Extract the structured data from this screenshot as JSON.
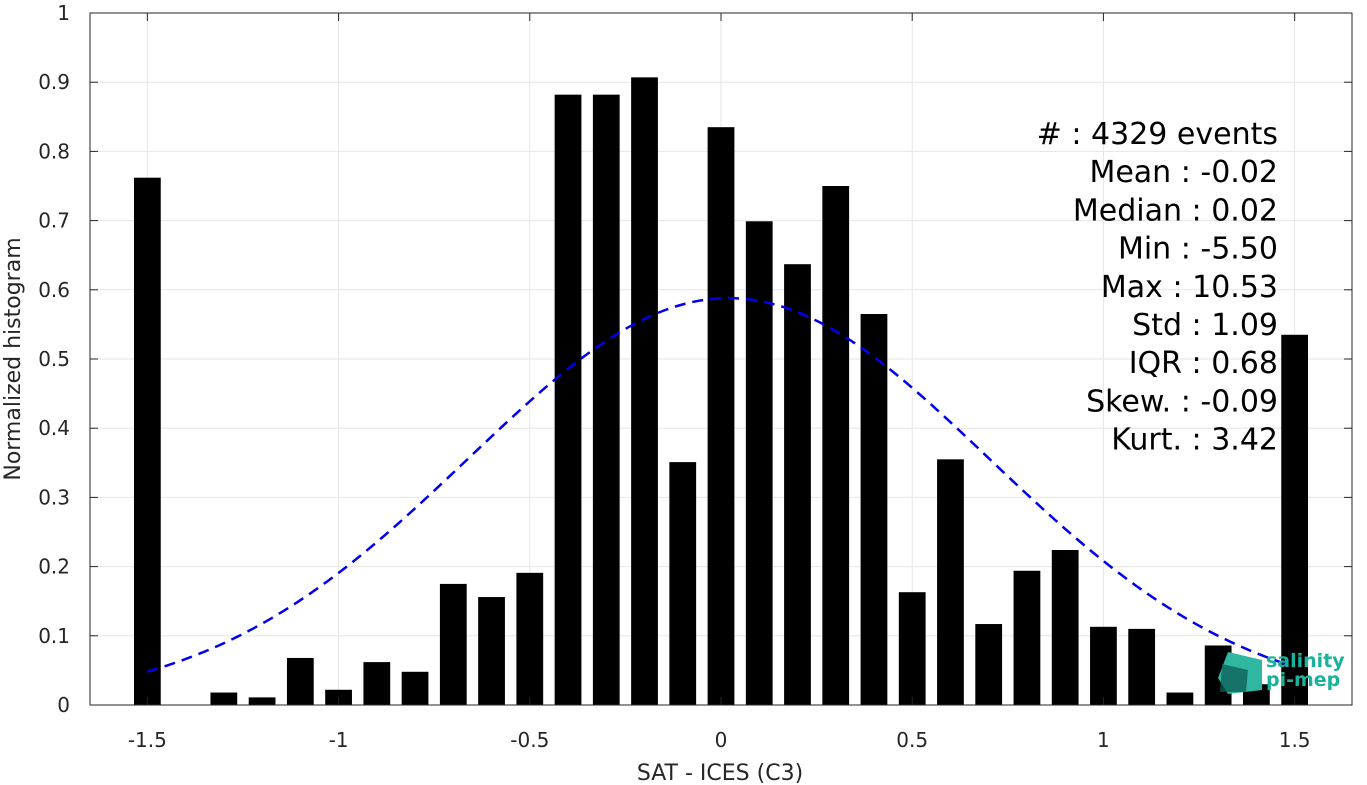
{
  "chart_data": {
    "type": "bar",
    "xlabel": "SAT - ICES (C3)",
    "ylabel": "Normalized histogram",
    "xlim": [
      -1.65,
      1.65
    ],
    "ylim": [
      0,
      1
    ],
    "grid": true,
    "x_ticks": [
      -1.5,
      -1,
      -0.5,
      0,
      0.5,
      1,
      1.5
    ],
    "x_tick_labels": [
      "-1.5",
      "-1",
      "-0.5",
      "0",
      "0.5",
      "1",
      "1.5"
    ],
    "y_ticks": [
      0,
      0.1,
      0.2,
      0.3,
      0.4,
      0.5,
      0.6,
      0.7,
      0.8,
      0.9,
      1
    ],
    "y_tick_labels": [
      "0",
      "0.1",
      "0.2",
      "0.3",
      "0.4",
      "0.5",
      "0.6",
      "0.7",
      "0.8",
      "0.9",
      "1"
    ],
    "bar_width": 0.07,
    "bar_color": "#000000",
    "x": [
      -1.5,
      -1.4,
      -1.3,
      -1.2,
      -1.1,
      -1.0,
      -0.9,
      -0.8,
      -0.7,
      -0.6,
      -0.5,
      -0.4,
      -0.3,
      -0.2,
      -0.1,
      0.0,
      0.1,
      0.2,
      0.3,
      0.4,
      0.5,
      0.6,
      0.7,
      0.8,
      0.9,
      1.0,
      1.1,
      1.2,
      1.3,
      1.4,
      1.5
    ],
    "values": [
      0.762,
      0.0,
      0.018,
      0.011,
      0.068,
      0.022,
      0.062,
      0.048,
      0.175,
      0.156,
      0.191,
      0.882,
      0.882,
      0.907,
      0.351,
      0.835,
      0.699,
      0.637,
      0.75,
      0.565,
      0.163,
      0.355,
      0.117,
      0.194,
      0.224,
      0.113,
      0.11,
      0.018,
      0.086,
      0.03,
      0.535
    ],
    "fit_curve": {
      "style": "dashed",
      "color": "#0000ee",
      "mean": 0.02,
      "std": 0.68,
      "peak": 0.588,
      "x_range": [
        -1.5,
        1.5
      ]
    },
    "stats_lines": [
      "#  : 4329 events",
      "Mean : -0.02",
      "Median : 0.02",
      "Min : -5.50",
      "Max : 10.53",
      "Std : 1.09",
      "IQR : 0.68",
      "Skew. : -0.09",
      "Kurt. : 3.42"
    ]
  },
  "logo": {
    "line1": "salinity",
    "line2": "pi-mep",
    "colors": {
      "text": "#19b39b",
      "icon_dark": "#0e5c55",
      "icon_light": "#2fb7a2"
    }
  }
}
